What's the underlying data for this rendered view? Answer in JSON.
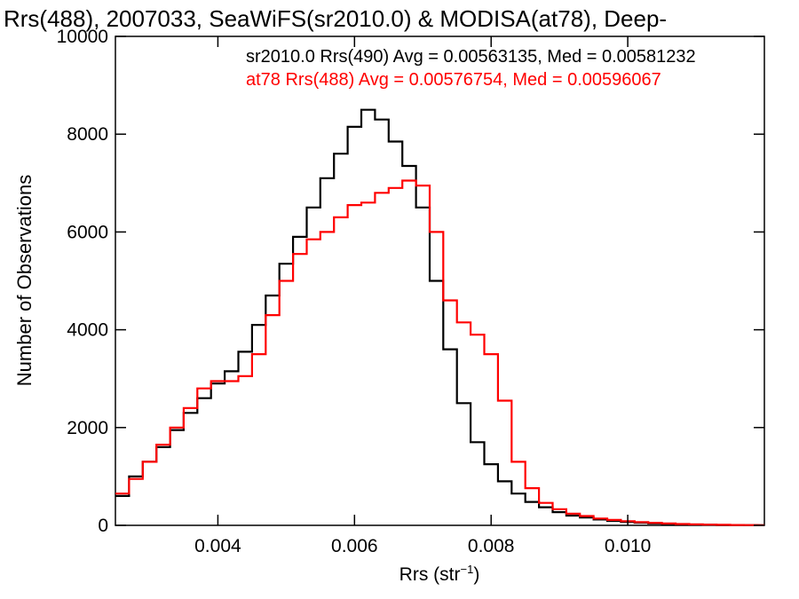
{
  "chart_data": {
    "type": "line",
    "title": "Rrs(488), 2007033, SeaWiFS(sr2010.0) & MODISA(at78), Deep-",
    "xlabel": "Rrs (str",
    "xlabel_sup": "−1",
    "xlabel_close": ")",
    "ylabel": "Number of Observations",
    "xlim": [
      0.0025,
      0.012
    ],
    "ylim": [
      0,
      10000
    ],
    "x_ticks": [
      0.004,
      0.006,
      0.008,
      0.01
    ],
    "x_tick_labels": [
      "0.004",
      "0.006",
      "0.008",
      "0.010"
    ],
    "y_ticks": [
      0,
      2000,
      4000,
      6000,
      8000,
      10000
    ],
    "y_tick_labels": [
      "0",
      "2000",
      "4000",
      "6000",
      "8000",
      "10000"
    ],
    "grid": false,
    "legend_position": "top-right",
    "series": [
      {
        "name": "sr2010.0 Rrs(490) Avg = 0.00563135, Med = 0.00581232",
        "color": "#000000",
        "x": [
          0.0025,
          0.0027,
          0.0029,
          0.0031,
          0.0033,
          0.0035,
          0.0037,
          0.0039,
          0.0041,
          0.0043,
          0.0045,
          0.0047,
          0.0049,
          0.0051,
          0.0053,
          0.0055,
          0.0057,
          0.0059,
          0.0061,
          0.0063,
          0.0065,
          0.0067,
          0.0069,
          0.0071,
          0.0073,
          0.0075,
          0.0077,
          0.0079,
          0.0081,
          0.0083,
          0.0085,
          0.0087,
          0.0089,
          0.0091,
          0.0093,
          0.0095,
          0.0097,
          0.0099,
          0.0101,
          0.0103,
          0.0105,
          0.0107,
          0.0109,
          0.0111,
          0.0113,
          0.0115,
          0.0117,
          0.0119
        ],
        "y": [
          600,
          1000,
          1300,
          1600,
          1950,
          2300,
          2600,
          2900,
          3150,
          3550,
          4100,
          4700,
          5350,
          5900,
          6500,
          7100,
          7600,
          8150,
          8500,
          8300,
          7850,
          7350,
          6500,
          5000,
          3600,
          2500,
          1700,
          1250,
          900,
          650,
          480,
          370,
          270,
          200,
          160,
          120,
          90,
          70,
          55,
          40,
          30,
          20,
          15,
          10,
          8,
          5,
          4,
          3
        ]
      },
      {
        "name": "at78 Rrs(488) Avg = 0.00576754, Med = 0.00596067",
        "color": "#ff0000",
        "x": [
          0.0025,
          0.0027,
          0.0029,
          0.0031,
          0.0033,
          0.0035,
          0.0037,
          0.0039,
          0.0041,
          0.0043,
          0.0045,
          0.0047,
          0.0049,
          0.0051,
          0.0053,
          0.0055,
          0.0057,
          0.0059,
          0.0061,
          0.0063,
          0.0065,
          0.0067,
          0.0069,
          0.0071,
          0.0073,
          0.0075,
          0.0077,
          0.0079,
          0.0081,
          0.0083,
          0.0085,
          0.0087,
          0.0089,
          0.0091,
          0.0093,
          0.0095,
          0.0097,
          0.0099,
          0.0101,
          0.0103,
          0.0105,
          0.0107,
          0.0109,
          0.0111,
          0.0113,
          0.0115,
          0.0117,
          0.0119
        ],
        "y": [
          650,
          950,
          1300,
          1650,
          2000,
          2400,
          2800,
          2950,
          2950,
          3050,
          3500,
          4300,
          5000,
          5550,
          5850,
          6000,
          6300,
          6550,
          6600,
          6800,
          6900,
          7050,
          6950,
          6000,
          4600,
          4150,
          3900,
          3500,
          2550,
          1300,
          760,
          460,
          330,
          240,
          190,
          140,
          110,
          85,
          65,
          50,
          38,
          28,
          20,
          14,
          10,
          7,
          5,
          3
        ]
      }
    ]
  }
}
